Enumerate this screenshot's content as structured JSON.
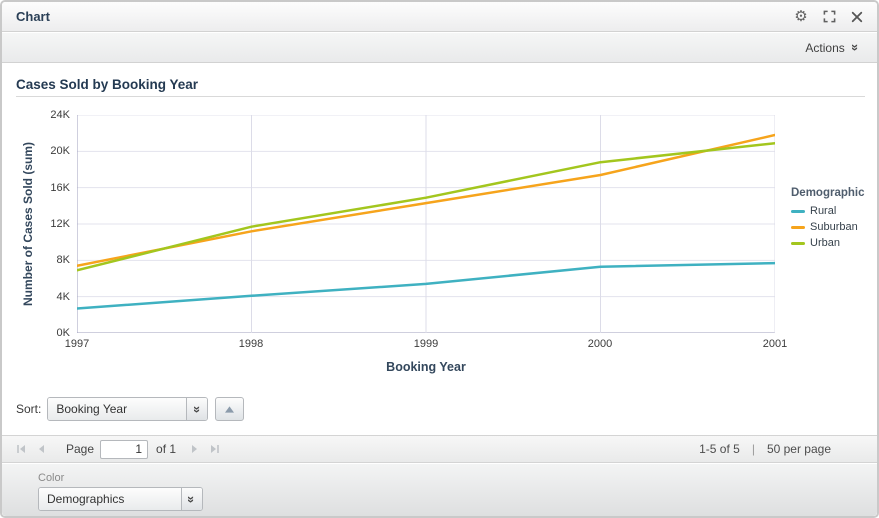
{
  "window": {
    "title": "Chart",
    "icons": {
      "settings": "gear-icon",
      "maximize": "expand-icon",
      "close": "close-icon"
    }
  },
  "toolbar": {
    "actions_label": "Actions"
  },
  "chart": {
    "title": "Cases Sold by Booking Year",
    "y_axis": {
      "title": "Number of Cases Sold (sum)",
      "ticks": [
        "24K",
        "20K",
        "16K",
        "12K",
        "8K",
        "4K",
        "0K"
      ]
    },
    "x_axis": {
      "title": "Booking Year",
      "ticks": [
        "1997",
        "1998",
        "1999",
        "2000",
        "2001"
      ]
    },
    "legend": {
      "title": "Demographic",
      "items": [
        {
          "label": "Rural",
          "color": "#3fb1c1"
        },
        {
          "label": "Suburban",
          "color": "#f6a41c"
        },
        {
          "label": "Urban",
          "color": "#a3c61e"
        }
      ]
    }
  },
  "chart_data": {
    "type": "line",
    "title": "Cases Sold by Booking Year",
    "xlabel": "Booking Year",
    "ylabel": "Number of Cases Sold (sum)",
    "categories": [
      1997,
      1998,
      1999,
      2000,
      2001
    ],
    "series": [
      {
        "name": "Rural",
        "color": "#3fb1c1",
        "values": [
          2700,
          4100,
          5400,
          7300,
          7700
        ]
      },
      {
        "name": "Suburban",
        "color": "#f6a41c",
        "values": [
          7400,
          11200,
          14300,
          17400,
          21800
        ]
      },
      {
        "name": "Urban",
        "color": "#a3c61e",
        "values": [
          6900,
          11700,
          14900,
          18800,
          20900
        ]
      }
    ],
    "ylim": [
      0,
      24000
    ],
    "y_tick_step": 4000,
    "grid": true,
    "legend_position": "right",
    "legend_title": "Demographic"
  },
  "sort": {
    "label": "Sort:",
    "value": "Booking Year"
  },
  "paging": {
    "page_label": "Page",
    "page_value": "1",
    "of_label": "of 1",
    "range": "1-5 of 5",
    "separator": "|",
    "per_page": "50 per page"
  },
  "color_panel": {
    "label": "Color",
    "value": "Demographics"
  }
}
